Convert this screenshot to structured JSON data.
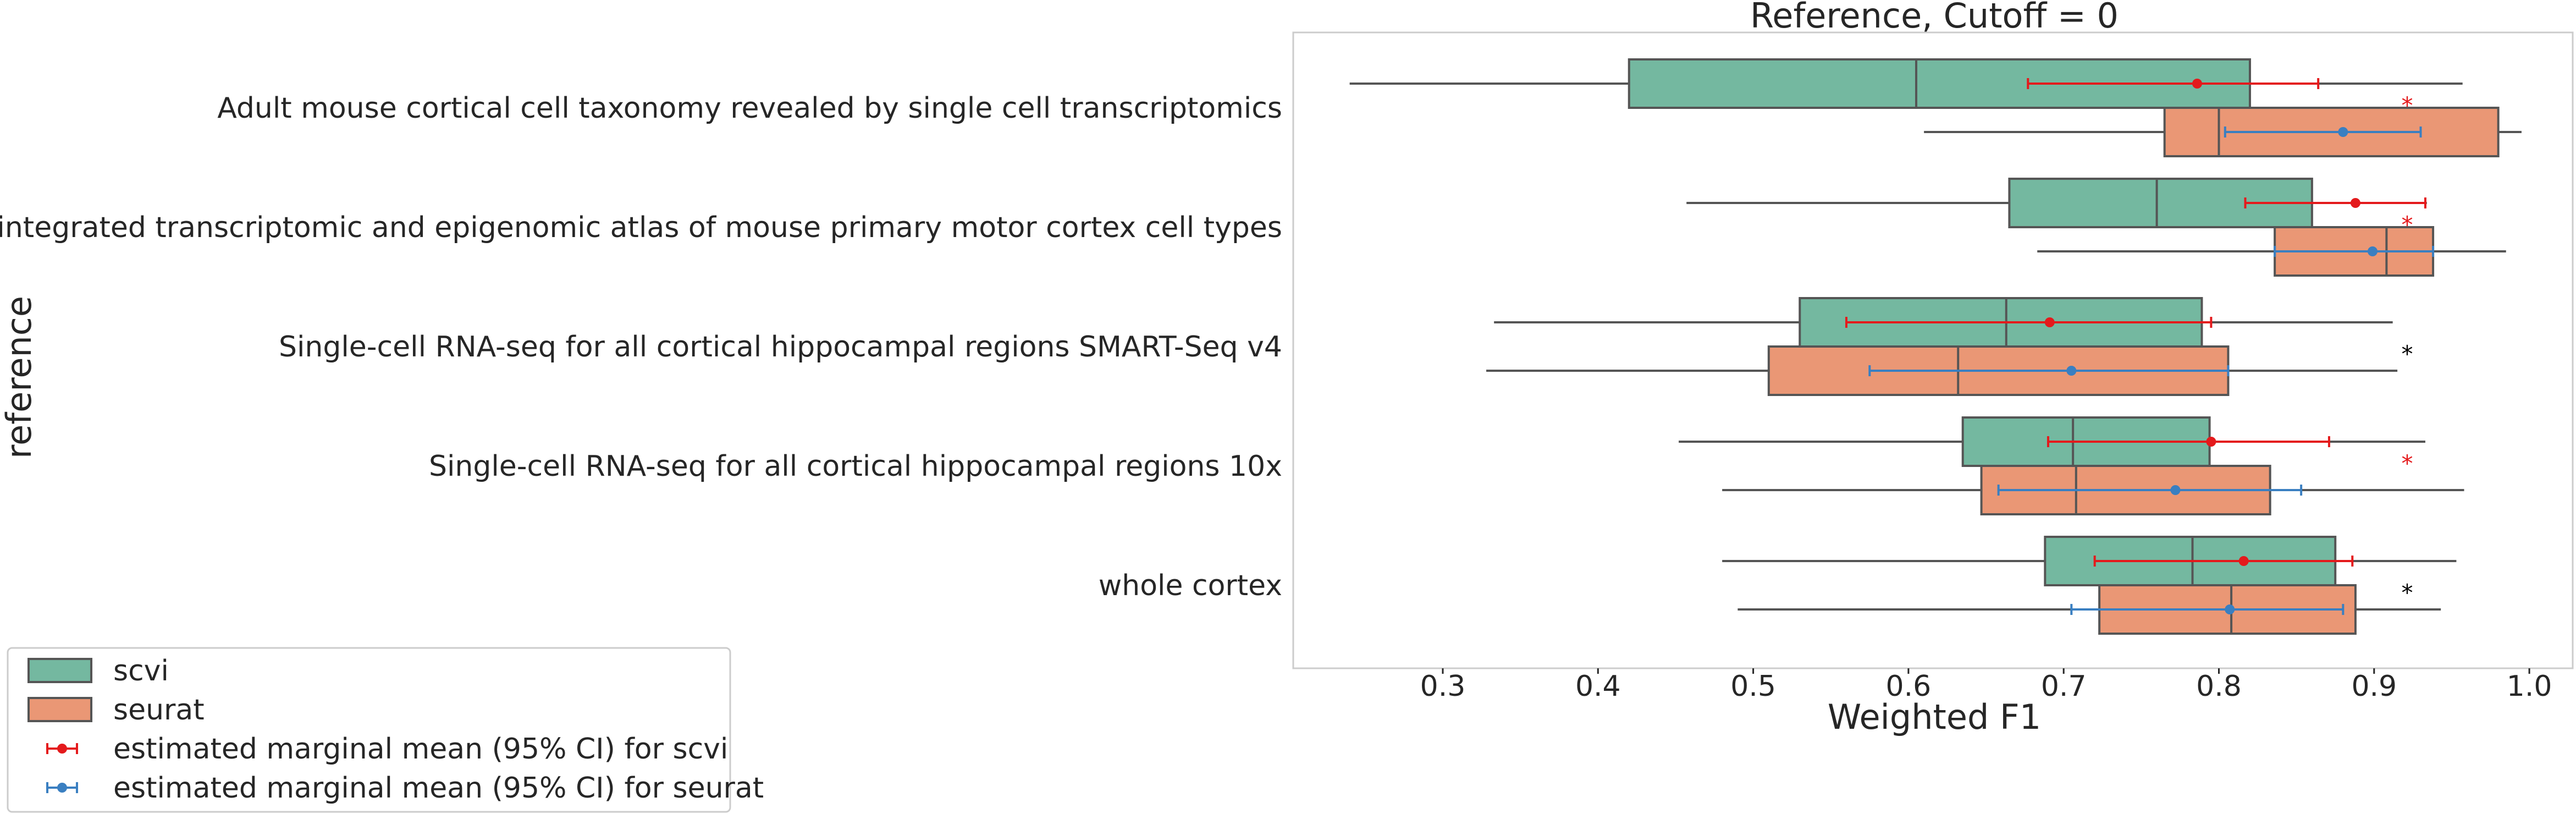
{
  "chart_data": {
    "type": "box",
    "title": "Reference, Cutoff = 0",
    "xlabel": "Weighted F1",
    "ylabel": "reference",
    "xlim": [
      0.2,
      1.03
    ],
    "xticks": [
      "0.3",
      "0.4",
      "0.5",
      "0.6",
      "0.7",
      "0.8",
      "0.9",
      "1.0"
    ],
    "grid": false,
    "legend_position": "bottom-left",
    "colors": {
      "scvi": "#74b8a0",
      "seurat": "#ea9775",
      "box_edge": "#555555",
      "ci_scvi": "#e41a1c",
      "ci_seurat": "#3a7fc1",
      "star_red": "#e41a1c",
      "star_black": "#000000"
    },
    "categories": [
      "Adult mouse cortical cell taxonomy revealed by single cell transcriptomics",
      "An integrated transcriptomic and epigenomic atlas of mouse primary motor cortex cell types",
      "Single-cell RNA-seq for all cortical  hippocampal regions SMART-Seq v4",
      "Single-cell RNA-seq for all cortical  hippocampal regions 10x",
      "whole cortex"
    ],
    "series": [
      {
        "name": "scvi",
        "boxes": [
          {
            "whisker_low": 0.24,
            "q1": 0.42,
            "median": 0.605,
            "q3": 0.82,
            "whisker_high": 0.957
          },
          {
            "whisker_low": 0.457,
            "q1": 0.665,
            "median": 0.76,
            "q3": 0.86,
            "whisker_high": 0.934
          },
          {
            "whisker_low": 0.333,
            "q1": 0.53,
            "median": 0.663,
            "q3": 0.789,
            "whisker_high": 0.912
          },
          {
            "whisker_low": 0.452,
            "q1": 0.635,
            "median": 0.706,
            "q3": 0.794,
            "whisker_high": 0.933
          },
          {
            "whisker_low": 0.48,
            "q1": 0.688,
            "median": 0.783,
            "q3": 0.875,
            "whisker_high": 0.953
          }
        ]
      },
      {
        "name": "seurat",
        "boxes": [
          {
            "whisker_low": 0.61,
            "q1": 0.765,
            "median": 0.8,
            "q3": 0.98,
            "whisker_high": 0.995
          },
          {
            "whisker_low": 0.683,
            "q1": 0.836,
            "median": 0.908,
            "q3": 0.938,
            "whisker_high": 0.985
          },
          {
            "whisker_low": 0.328,
            "q1": 0.51,
            "median": 0.632,
            "q3": 0.806,
            "whisker_high": 0.915
          },
          {
            "whisker_low": 0.48,
            "q1": 0.647,
            "median": 0.708,
            "q3": 0.833,
            "whisker_high": 0.958
          },
          {
            "whisker_low": 0.49,
            "q1": 0.723,
            "median": 0.808,
            "q3": 0.888,
            "whisker_high": 0.943
          }
        ]
      }
    ],
    "marginal_means": [
      {
        "name": "estimated marginal mean (95% CI) for scvi",
        "points": [
          {
            "mean": 0.786,
            "low": 0.677,
            "high": 0.864
          },
          {
            "mean": 0.888,
            "low": 0.817,
            "high": 0.933
          },
          {
            "mean": 0.691,
            "low": 0.56,
            "high": 0.795
          },
          {
            "mean": 0.795,
            "low": 0.69,
            "high": 0.871
          },
          {
            "mean": 0.816,
            "low": 0.72,
            "high": 0.886
          }
        ]
      },
      {
        "name": "estimated marginal mean (95% CI) for seurat",
        "points": [
          {
            "mean": 0.88,
            "low": 0.804,
            "high": 0.93
          },
          {
            "mean": 0.899,
            "low": 0.836,
            "high": 0.938
          },
          {
            "mean": 0.705,
            "low": 0.575,
            "high": 0.806
          },
          {
            "mean": 0.772,
            "low": 0.658,
            "high": 0.853
          },
          {
            "mean": 0.807,
            "low": 0.705,
            "high": 0.88
          }
        ]
      }
    ],
    "annotations": [
      {
        "text": "*",
        "category_index": 0,
        "color": "red"
      },
      {
        "text": "*",
        "category_index": 1,
        "color": "red"
      },
      {
        "text": "*",
        "category_index": 2,
        "color": "black"
      },
      {
        "text": "*",
        "category_index": 3,
        "color": "red"
      },
      {
        "text": "*",
        "category_index": 4,
        "color": "black"
      }
    ],
    "legend": [
      {
        "label": "scvi",
        "kind": "patch",
        "series": "scvi"
      },
      {
        "label": "seurat",
        "kind": "patch",
        "series": "seurat"
      },
      {
        "label": "estimated marginal mean (95% CI) for scvi",
        "kind": "errorbar",
        "series": "ci_scvi"
      },
      {
        "label": "estimated marginal mean (95% CI) for seurat",
        "kind": "errorbar",
        "series": "ci_seurat"
      }
    ]
  }
}
